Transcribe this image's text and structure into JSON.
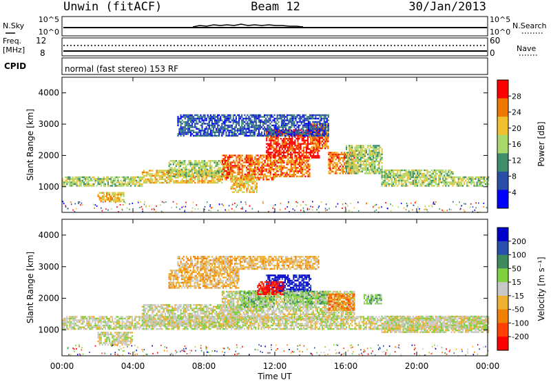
{
  "header": {
    "station": "Unwin (fitACF)",
    "beam": "Beam 12",
    "date": "30/Jan/2013"
  },
  "summary_panels": {
    "nsky_label": "N.Sky",
    "nsky_ticks": [
      "10^5",
      "10^0"
    ],
    "nsearch_label": "N.Search",
    "nsearch_ticks": [
      "10^5",
      "10^0"
    ],
    "freq_label": "Freq.",
    "freq_unit": "[MHz]",
    "freq_ticks": [
      "12",
      "8"
    ],
    "nave_label": "Nave",
    "nave_ticks": [
      "60",
      "0"
    ],
    "cpid_label": "CPID",
    "cpid_text": "normal (fast stereo) 153 RF"
  },
  "colors": {
    "power_scale": [
      "#0000ff",
      "#2a4ea8",
      "#3d8f6a",
      "#a8d86a",
      "#f0c030",
      "#f07800",
      "#ff0000"
    ],
    "velocity_scale": [
      "#0000cc",
      "#2850b0",
      "#3c8a5e",
      "#7fd040",
      "#c8c8c8",
      "#f0b030",
      "#f08000",
      "#ff4000",
      "#ff0000"
    ]
  },
  "chart_data": [
    {
      "type": "heatmap",
      "title": "Power",
      "ylabel": "Slant Range [km]",
      "xlabel": "Time UT",
      "x_ticks": [
        "00:00",
        "04:00",
        "08:00",
        "12:00",
        "16:00",
        "20:00",
        "00:00"
      ],
      "y_ticks": [
        "1000",
        "2000",
        "3000",
        "4000"
      ],
      "ylim": [
        180,
        4500
      ],
      "xlim_hours": [
        0,
        24
      ],
      "colorbar_label": "Power [dB]",
      "colorbar_ticks": [
        "4",
        "8",
        "12",
        "16",
        "20",
        "24",
        "28"
      ],
      "bands": [
        {
          "t0": 0.0,
          "t1": 4.5,
          "r0": 1000,
          "r1": 1300,
          "level": 3
        },
        {
          "t0": 2.0,
          "t1": 3.5,
          "r0": 500,
          "r1": 800,
          "level": 4
        },
        {
          "t0": 4.5,
          "t1": 9.0,
          "r0": 1100,
          "r1": 1500,
          "level": 4
        },
        {
          "t0": 6.0,
          "t1": 9.5,
          "r0": 1300,
          "r1": 1800,
          "level": 3
        },
        {
          "t0": 9.0,
          "t1": 12.0,
          "r0": 1200,
          "r1": 2000,
          "level": 5
        },
        {
          "t0": 9.5,
          "t1": 11.0,
          "r0": 800,
          "r1": 1300,
          "level": 4
        },
        {
          "t0": 11.5,
          "t1": 14.5,
          "r0": 1900,
          "r1": 2800,
          "level": 6
        },
        {
          "t0": 12.0,
          "t1": 14.0,
          "r0": 1300,
          "r1": 1900,
          "level": 5
        },
        {
          "t0": 14.0,
          "t1": 15.0,
          "r0": 2200,
          "r1": 3000,
          "level": 5
        },
        {
          "t0": 15.0,
          "t1": 16.5,
          "r0": 1400,
          "r1": 2100,
          "level": 5
        },
        {
          "t0": 16.0,
          "t1": 18.0,
          "r0": 1400,
          "r1": 2300,
          "level": 3
        },
        {
          "t0": 18.0,
          "t1": 22.0,
          "r0": 1000,
          "r1": 1500,
          "level": 3
        },
        {
          "t0": 22.0,
          "t1": 24.0,
          "r0": 1000,
          "r1": 1300,
          "level": 3
        },
        {
          "t0": 6.5,
          "t1": 15.0,
          "r0": 2600,
          "r1": 3300,
          "level": 1
        }
      ]
    },
    {
      "type": "heatmap",
      "title": "Velocity",
      "ylabel": "Slant Range [km]",
      "xlabel": "Time UT",
      "x_ticks": [
        "00:00",
        "04:00",
        "08:00",
        "12:00",
        "16:00",
        "20:00",
        "00:00"
      ],
      "y_ticks": [
        "1000",
        "2000",
        "3000",
        "4000"
      ],
      "ylim": [
        180,
        4500
      ],
      "xlim_hours": [
        0,
        24
      ],
      "colorbar_label": "Velocity [m s⁻¹]",
      "colorbar_ticks": [
        "200",
        "100",
        "50",
        "15",
        "-15",
        "-50",
        "-100",
        "-200"
      ],
      "bands": [
        {
          "t0": 0.0,
          "t1": 24.0,
          "r0": 1000,
          "r1": 1400,
          "level": 4
        },
        {
          "t0": 4.5,
          "t1": 10.0,
          "r0": 1100,
          "r1": 1800,
          "level": 4
        },
        {
          "t0": 9.0,
          "t1": 16.5,
          "r0": 1300,
          "r1": 2200,
          "level": 4
        },
        {
          "t0": 6.0,
          "t1": 10.0,
          "r0": 2300,
          "r1": 2900,
          "level": 5
        },
        {
          "t0": 10.0,
          "t1": 12.0,
          "r0": 1700,
          "r1": 2200,
          "level": 3
        },
        {
          "t0": 11.5,
          "t1": 14.0,
          "r0": 2200,
          "r1": 2700,
          "level": 0
        },
        {
          "t0": 11.0,
          "t1": 12.5,
          "r0": 2100,
          "r1": 2500,
          "level": 8
        },
        {
          "t0": 12.5,
          "t1": 15.0,
          "r0": 1800,
          "r1": 2200,
          "level": 3
        },
        {
          "t0": 15.0,
          "t1": 16.5,
          "r0": 1600,
          "r1": 2100,
          "level": 6
        },
        {
          "t0": 17.0,
          "t1": 18.0,
          "r0": 1800,
          "r1": 2100,
          "level": 3
        },
        {
          "t0": 2.0,
          "t1": 4.0,
          "r0": 500,
          "r1": 900,
          "level": 4
        },
        {
          "t0": 18.0,
          "t1": 24.0,
          "r0": 900,
          "r1": 1400,
          "level": 4
        },
        {
          "t0": 6.5,
          "t1": 14.5,
          "r0": 2900,
          "r1": 3300,
          "level": 5
        }
      ]
    }
  ]
}
